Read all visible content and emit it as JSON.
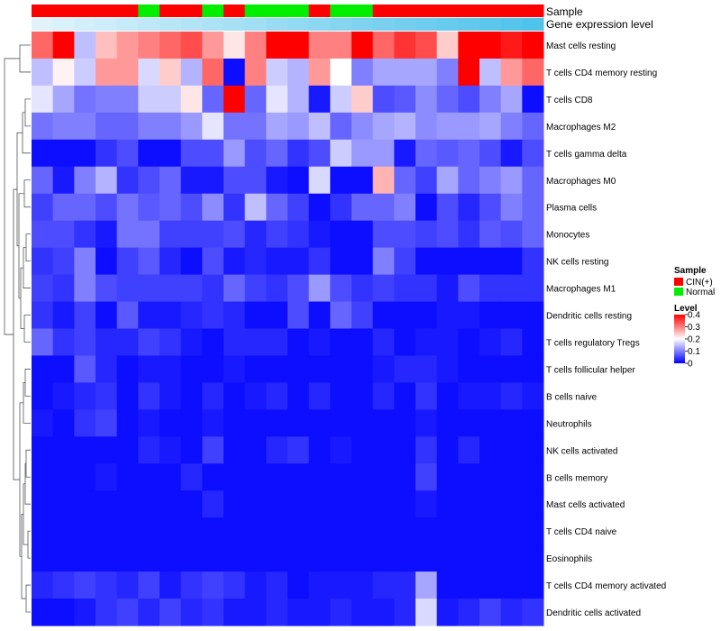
{
  "chart_data": {
    "type": "heatmap",
    "title": "",
    "annotation_tracks": [
      "Sample",
      "Gene expression level"
    ],
    "sample_groups": [
      "CIN(+)",
      "CIN(+)",
      "CIN(+)",
      "CIN(+)",
      "CIN(+)",
      "Normal",
      "CIN(+)",
      "CIN(+)",
      "Normal",
      "CIN(+)",
      "Normal",
      "Normal",
      "Normal",
      "CIN(+)",
      "Normal",
      "Normal",
      "CIN(+)",
      "CIN(+)",
      "CIN(+)",
      "CIN(+)",
      "CIN(+)",
      "CIN(+)",
      "CIN(+)",
      "CIN(+)"
    ],
    "expression_levels": [
      0.05,
      0.1,
      0.14,
      0.18,
      0.22,
      0.27,
      0.31,
      0.35,
      0.39,
      0.43,
      0.48,
      0.52,
      0.56,
      0.6,
      0.64,
      0.68,
      0.72,
      0.76,
      0.8,
      0.84,
      0.88,
      0.92,
      0.96,
      1.0
    ],
    "rows": [
      "Mast cells resting",
      "T cells CD4 memory resting",
      "T cells CD8",
      "Macrophages M2",
      "T cells gamma delta",
      "Macrophages M0",
      "Plasma cells",
      "Monocytes",
      "NK cells resting",
      "Macrophages M1",
      "Dendritic cells resting",
      "T cells regulatory  Tregs",
      "T cells follicular helper",
      "B cells naive",
      "Neutrophils",
      "NK cells activated",
      "B cells memory",
      "Mast cells activated",
      "T cells CD4 naive",
      "Eosinophils",
      "T cells CD4 memory activated",
      "Dendritic cells activated"
    ],
    "values": [
      [
        0.32,
        0.4,
        0.15,
        0.25,
        0.28,
        0.3,
        0.32,
        0.34,
        0.28,
        0.22,
        0.3,
        0.4,
        0.4,
        0.3,
        0.3,
        0.4,
        0.32,
        0.36,
        0.34,
        0.24,
        0.4,
        0.4,
        0.38,
        0.4
      ],
      [
        0.15,
        0.21,
        0.16,
        0.28,
        0.28,
        0.17,
        0.24,
        0.14,
        0.32,
        0.01,
        0.3,
        0.16,
        0.14,
        0.28,
        0.2,
        0.1,
        0.13,
        0.13,
        0.13,
        0.1,
        0.4,
        0.15,
        0.28,
        0.32
      ],
      [
        0.18,
        0.13,
        0.09,
        0.1,
        0.1,
        0.16,
        0.16,
        0.22,
        0.08,
        0.4,
        0.08,
        0.18,
        0.14,
        0.02,
        0.16,
        0.24,
        0.06,
        0.07,
        0.11,
        0.08,
        0.06,
        0.1,
        0.13,
        0.01
      ],
      [
        0.09,
        0.1,
        0.1,
        0.08,
        0.08,
        0.1,
        0.1,
        0.12,
        0.18,
        0.09,
        0.09,
        0.13,
        0.12,
        0.15,
        0.08,
        0.11,
        0.13,
        0.14,
        0.11,
        0.12,
        0.12,
        0.13,
        0.1,
        0.08
      ],
      [
        0.01,
        0.01,
        0.01,
        0.04,
        0.06,
        0.01,
        0.01,
        0.06,
        0.06,
        0.12,
        0.06,
        0.08,
        0.04,
        0.06,
        0.16,
        0.12,
        0.12,
        0.02,
        0.08,
        0.07,
        0.08,
        0.06,
        0.02,
        0.06
      ],
      [
        0.08,
        0.02,
        0.1,
        0.14,
        0.04,
        0.06,
        0.08,
        0.02,
        0.02,
        0.06,
        0.06,
        0.02,
        0.01,
        0.17,
        0.01,
        0.01,
        0.26,
        0.08,
        0.05,
        0.13,
        0.08,
        0.1,
        0.12,
        0.08
      ],
      [
        0.05,
        0.08,
        0.08,
        0.06,
        0.09,
        0.07,
        0.08,
        0.06,
        0.11,
        0.04,
        0.15,
        0.08,
        0.05,
        0.01,
        0.04,
        0.08,
        0.08,
        0.1,
        0.01,
        0.06,
        0.03,
        0.06,
        0.1,
        0.08
      ],
      [
        0.06,
        0.06,
        0.04,
        0.02,
        0.09,
        0.09,
        0.05,
        0.05,
        0.05,
        0.06,
        0.03,
        0.05,
        0.04,
        0.02,
        0.01,
        0.01,
        0.06,
        0.06,
        0.05,
        0.06,
        0.04,
        0.07,
        0.06,
        0.08
      ],
      [
        0.04,
        0.05,
        0.1,
        0.01,
        0.05,
        0.07,
        0.03,
        0.01,
        0.06,
        0.02,
        0.03,
        0.02,
        0.02,
        0.04,
        0.01,
        0.01,
        0.1,
        0.05,
        0.01,
        0.01,
        0.01,
        0.01,
        0.01,
        0.04
      ],
      [
        0.05,
        0.04,
        0.1,
        0.06,
        0.05,
        0.05,
        0.05,
        0.05,
        0.04,
        0.08,
        0.05,
        0.04,
        0.06,
        0.12,
        0.06,
        0.04,
        0.05,
        0.04,
        0.04,
        0.02,
        0.06,
        0.04,
        0.04,
        0.04
      ],
      [
        0.04,
        0.02,
        0.05,
        0.01,
        0.07,
        0.02,
        0.02,
        0.03,
        0.04,
        0.03,
        0.01,
        0.01,
        0.06,
        0.01,
        0.08,
        0.05,
        0.01,
        0.01,
        0.01,
        0.02,
        0.02,
        0.01,
        0.01,
        0.01
      ],
      [
        0.08,
        0.04,
        0.05,
        0.03,
        0.03,
        0.05,
        0.04,
        0.02,
        0.01,
        0.03,
        0.03,
        0.03,
        0.01,
        0.02,
        0.01,
        0.01,
        0.03,
        0.01,
        0.02,
        0.02,
        0.01,
        0.02,
        0.03,
        0.01
      ],
      [
        0.01,
        0.01,
        0.07,
        0.03,
        0.01,
        0.02,
        0.02,
        0.01,
        0.01,
        0.02,
        0.01,
        0.01,
        0.01,
        0.01,
        0.01,
        0.01,
        0.02,
        0.03,
        0.03,
        0.02,
        0.01,
        0.01,
        0.01,
        0.01
      ],
      [
        0.01,
        0.02,
        0.03,
        0.04,
        0.01,
        0.04,
        0.02,
        0.01,
        0.03,
        0.01,
        0.02,
        0.03,
        0.01,
        0.03,
        0.01,
        0.01,
        0.03,
        0.01,
        0.04,
        0.01,
        0.02,
        0.02,
        0.03,
        0.02
      ],
      [
        0.02,
        0.01,
        0.04,
        0.05,
        0.01,
        0.02,
        0.01,
        0.01,
        0.02,
        0.01,
        0.01,
        0.01,
        0.01,
        0.01,
        0.01,
        0.01,
        0.01,
        0.01,
        0.02,
        0.01,
        0.01,
        0.01,
        0.01,
        0.01
      ],
      [
        0.01,
        0.01,
        0.01,
        0.01,
        0.01,
        0.03,
        0.02,
        0.01,
        0.05,
        0.01,
        0.01,
        0.03,
        0.04,
        0.01,
        0.02,
        0.01,
        0.01,
        0.01,
        0.04,
        0.01,
        0.03,
        0.01,
        0.01,
        0.01
      ],
      [
        0.01,
        0.01,
        0.01,
        0.02,
        0.01,
        0.01,
        0.01,
        0.03,
        0.01,
        0.01,
        0.01,
        0.01,
        0.01,
        0.01,
        0.01,
        0.01,
        0.01,
        0.01,
        0.05,
        0.01,
        0.01,
        0.01,
        0.01,
        0.01
      ],
      [
        0.01,
        0.01,
        0.01,
        0.01,
        0.01,
        0.01,
        0.01,
        0.01,
        0.03,
        0.01,
        0.01,
        0.01,
        0.01,
        0.01,
        0.01,
        0.01,
        0.01,
        0.01,
        0.02,
        0.01,
        0.01,
        0.01,
        0.01,
        0.01
      ],
      [
        0.01,
        0.01,
        0.01,
        0.01,
        0.01,
        0.01,
        0.01,
        0.01,
        0.01,
        0.01,
        0.01,
        0.01,
        0.01,
        0.01,
        0.01,
        0.01,
        0.01,
        0.01,
        0.01,
        0.01,
        0.01,
        0.01,
        0.01,
        0.01
      ],
      [
        0.01,
        0.01,
        0.01,
        0.01,
        0.01,
        0.01,
        0.01,
        0.01,
        0.01,
        0.01,
        0.01,
        0.01,
        0.01,
        0.01,
        0.01,
        0.01,
        0.01,
        0.01,
        0.01,
        0.01,
        0.01,
        0.01,
        0.01,
        0.01
      ],
      [
        0.03,
        0.04,
        0.05,
        0.04,
        0.03,
        0.05,
        0.02,
        0.04,
        0.05,
        0.04,
        0.02,
        0.03,
        0.01,
        0.02,
        0.02,
        0.02,
        0.03,
        0.03,
        0.13,
        0.01,
        0.01,
        0.01,
        0.01,
        0.01
      ],
      [
        0.01,
        0.01,
        0.02,
        0.04,
        0.05,
        0.03,
        0.05,
        0.03,
        0.04,
        0.02,
        0.02,
        0.03,
        0.02,
        0.02,
        0.03,
        0.02,
        0.02,
        0.03,
        0.17,
        0.02,
        0.03,
        0.05,
        0.03,
        0.04
      ]
    ],
    "legend": {
      "sample_title": "Sample",
      "sample_items": [
        {
          "label": "CIN(+)",
          "color": "#ff0000"
        },
        {
          "label": "Normal",
          "color": "#00ee00"
        }
      ],
      "level_title": "Level",
      "level_ticks": [
        0.4,
        0.3,
        0.2,
        0.1,
        0
      ],
      "level_tick_labels": [
        "0.4",
        "0.3",
        "0.2",
        "0.1",
        "0"
      ],
      "level_range": [
        0,
        0.4
      ]
    },
    "colors": {
      "low": "#0000ff",
      "mid": "#ffffff",
      "high": "#ff0000",
      "cin": "#ff0000",
      "normal": "#00ee00",
      "expr_low": "#e8f6fc",
      "expr_high": "#4fc3ea"
    }
  }
}
